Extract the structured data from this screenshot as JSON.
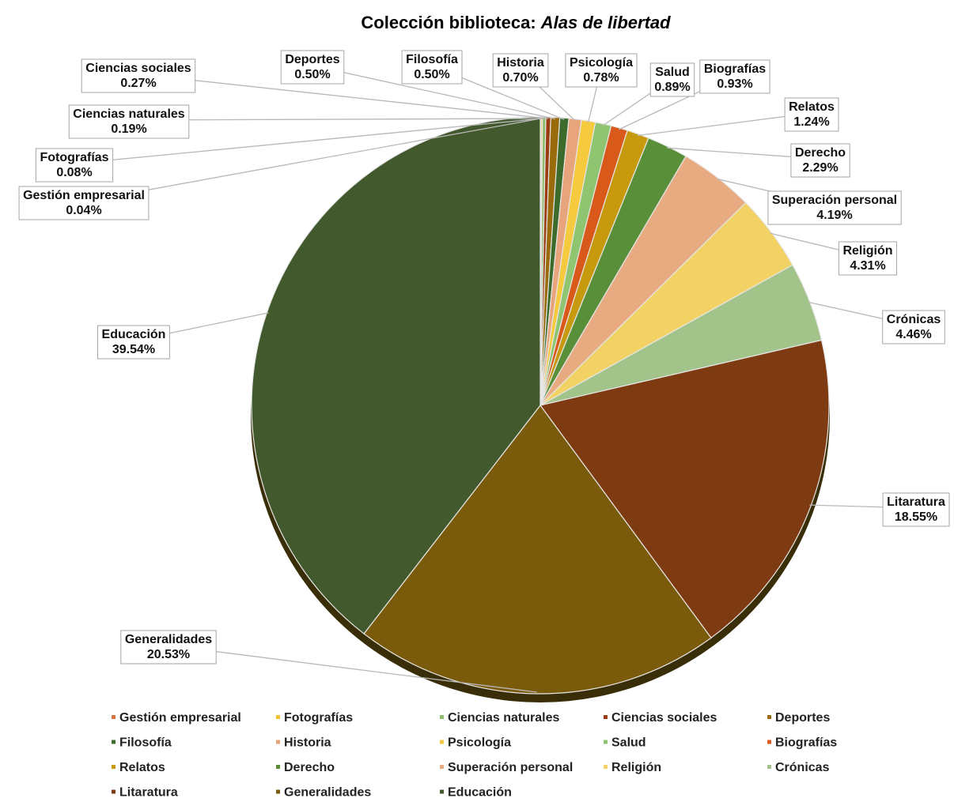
{
  "chart_data": {
    "type": "pie",
    "title": "Colección biblioteca: ",
    "title_emphasis": "Alas de libertad",
    "value_unit": "%",
    "legend_position": "bottom",
    "slices": [
      {
        "label": "Gestión empresarial",
        "value": 0.04,
        "value_label": "0.04%",
        "color": "#d9743f"
      },
      {
        "label": "Fotografías",
        "value": 0.08,
        "value_label": "0.08%",
        "color": "#f2c12e"
      },
      {
        "label": "Ciencias naturales",
        "value": 0.19,
        "value_label": "0.19%",
        "color": "#8fbc6a"
      },
      {
        "label": "Ciencias sociales",
        "value": 0.27,
        "value_label": "0.27%",
        "color": "#9a3b12"
      },
      {
        "label": "Deportes",
        "value": 0.5,
        "value_label": "0.50%",
        "color": "#9a6b0a"
      },
      {
        "label": "Filosofía",
        "value": 0.5,
        "value_label": "0.50%",
        "color": "#3d6b2c"
      },
      {
        "label": "Historia",
        "value": 0.7,
        "value_label": "0.70%",
        "color": "#e8a57c"
      },
      {
        "label": "Psicología",
        "value": 0.78,
        "value_label": "0.78%",
        "color": "#f5ca3e"
      },
      {
        "label": "Salud",
        "value": 0.89,
        "value_label": "0.89%",
        "color": "#8fc471"
      },
      {
        "label": "Biografías",
        "value": 0.93,
        "value_label": "0.93%",
        "color": "#d9591a"
      },
      {
        "label": "Relatos",
        "value": 1.24,
        "value_label": "1.24%",
        "color": "#c79a0e"
      },
      {
        "label": "Derecho",
        "value": 2.29,
        "value_label": "2.29%",
        "color": "#5a8f3a"
      },
      {
        "label": "Superación personal",
        "value": 4.19,
        "value_label": "4.19%",
        "color": "#e8aa80"
      },
      {
        "label": "Religión",
        "value": 4.31,
        "value_label": "4.31%",
        "color": "#f2d165"
      },
      {
        "label": "Crónicas",
        "value": 4.46,
        "value_label": "4.46%",
        "color": "#a2c48a"
      },
      {
        "label": "Litaratura",
        "value": 18.55,
        "value_label": "18.55%",
        "color": "#7e3a10"
      },
      {
        "label": "Generalidades",
        "value": 20.53,
        "value_label": "20.53%",
        "color": "#7a5a0b"
      },
      {
        "label": "Educación",
        "value": 39.54,
        "value_label": "39.54%",
        "color": "#41592c"
      }
    ]
  }
}
